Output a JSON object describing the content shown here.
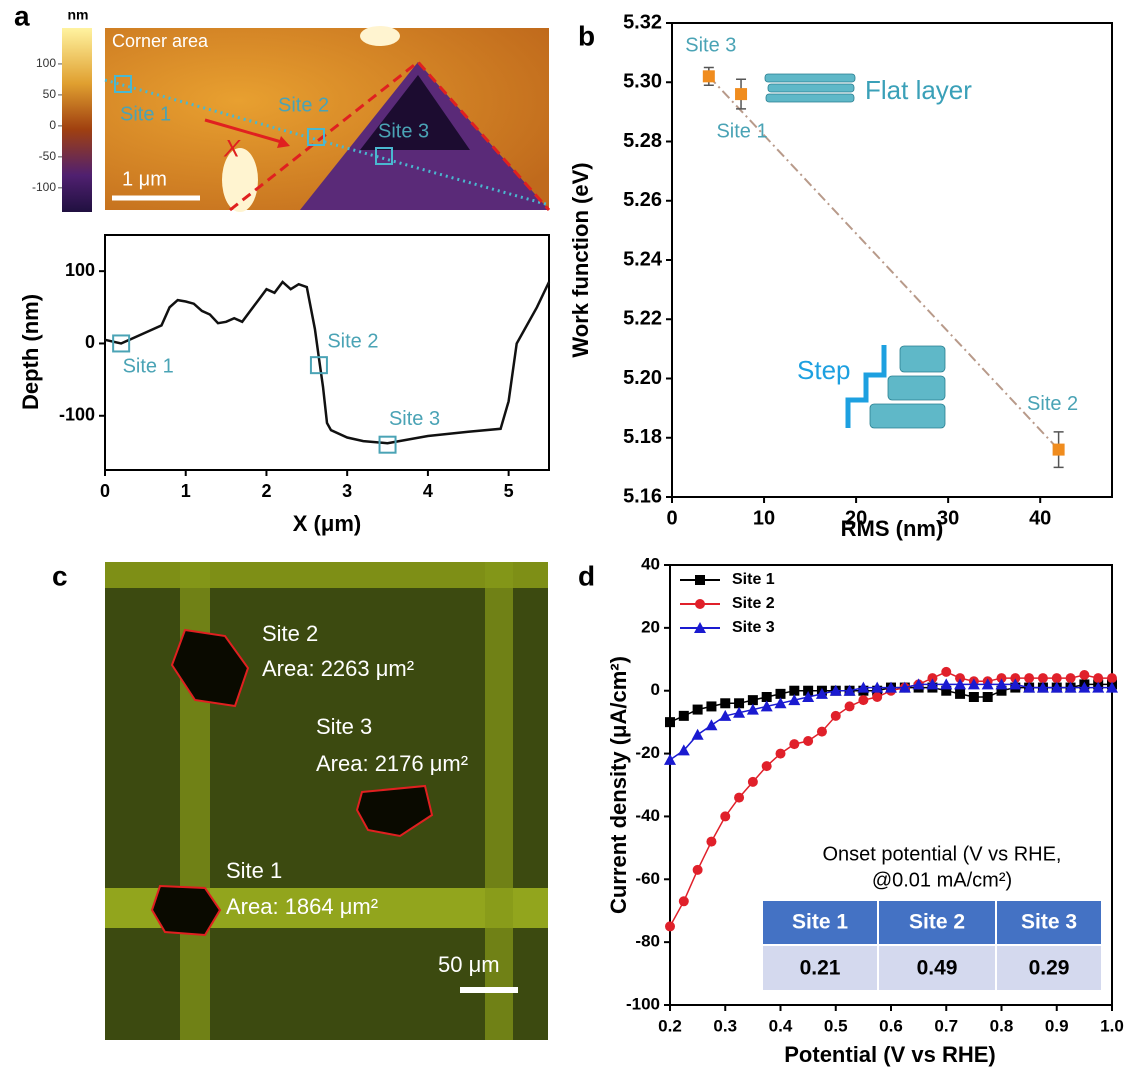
{
  "chart_data": [
    {
      "type": "line",
      "x_label": "X (μm)",
      "y_label": "Depth (nm)",
      "x": [
        0,
        0.2,
        0.5,
        0.7,
        0.8,
        0.9,
        1.0,
        1.1,
        1.2,
        1.3,
        1.4,
        1.5,
        1.6,
        1.7,
        1.8,
        1.9,
        2.0,
        2.1,
        2.2,
        2.3,
        2.4,
        2.5,
        2.6,
        2.65,
        2.7,
        2.75,
        2.8,
        3.0,
        3.2,
        3.5,
        3.8,
        4.0,
        4.5,
        4.9,
        5.0,
        5.1,
        5.2,
        5.35,
        5.5
      ],
      "values": [
        5,
        0,
        15,
        25,
        50,
        60,
        58,
        55,
        45,
        40,
        28,
        30,
        35,
        30,
        45,
        60,
        75,
        70,
        85,
        75,
        82,
        78,
        20,
        -20,
        -60,
        -110,
        -120,
        -130,
        -135,
        -138,
        -132,
        -128,
        -122,
        -118,
        -80,
        0,
        20,
        50,
        85
      ],
      "color": "#111111",
      "annotations": [
        {
          "label": "Site 1",
          "x": 0.2,
          "y": 0
        },
        {
          "label": "Site 2",
          "x": 2.65,
          "y": -30
        },
        {
          "label": "Site 3",
          "x": 3.5,
          "y": -140
        }
      ],
      "xlim": [
        0,
        5.5
      ],
      "xticks": [
        0,
        1,
        2,
        3,
        4,
        5
      ],
      "ylim": [
        -175,
        150
      ],
      "yticks": [
        -100,
        0,
        100
      ]
    },
    {
      "type": "scatter",
      "panel": "b",
      "x_label": "RMS (nm)",
      "y_label": "Work function (eV)",
      "x": [
        4,
        7.5,
        42
      ],
      "values": [
        5.302,
        5.296,
        5.176
      ],
      "errors": [
        0.003,
        0.005,
        0.006
      ],
      "point_labels": [
        "Site 3",
        "Site 1",
        "Site 2"
      ],
      "color": "#f08c1e",
      "trend_line": true,
      "trend_color": "#b89a8a",
      "annotations": [
        "Flat layer",
        "Step"
      ],
      "xlim": [
        0,
        47.8
      ],
      "xticks": [
        0,
        10,
        20,
        30,
        40
      ],
      "ylim": [
        5.16,
        5.32
      ],
      "yticks": [
        5.16,
        5.18,
        {
          "value": 5.2,
          "label": "5.20"
        },
        5.22,
        5.24,
        5.26,
        5.28,
        {
          "value": 5.3,
          "label": "5.30"
        },
        5.32
      ]
    },
    {
      "type": "line",
      "panel": "d",
      "x_label": "Potential (V vs RHE)",
      "y_label": "Current density (μA/cm²)",
      "x": [
        0.2,
        0.225,
        0.25,
        0.275,
        0.3,
        0.325,
        0.35,
        0.375,
        0.4,
        0.425,
        0.45,
        0.475,
        0.5,
        0.525,
        0.55,
        0.575,
        0.6,
        0.625,
        0.65,
        0.675,
        0.7,
        0.725,
        0.75,
        0.775,
        0.8,
        0.825,
        0.85,
        0.875,
        0.9,
        0.925,
        0.95,
        0.975,
        1.0
      ],
      "series": [
        {
          "name": "Site 1",
          "color": "#000000",
          "marker": "square",
          "values": [
            -10,
            -8,
            -6,
            -5,
            -4,
            -4,
            -3,
            -2,
            -1,
            0,
            0,
            0,
            0,
            0,
            0,
            0,
            1,
            1,
            1,
            1,
            0,
            -1,
            -2,
            -2,
            0,
            1,
            1,
            1,
            1,
            1,
            2,
            2,
            2
          ]
        },
        {
          "name": "Site 2",
          "color": "#e0202a",
          "marker": "circle",
          "values": [
            -75,
            -67,
            -57,
            -48,
            -40,
            -34,
            -29,
            -24,
            -20,
            -17,
            -16,
            -13,
            -8,
            -5,
            -3,
            -2,
            0,
            1,
            2,
            4,
            6,
            4,
            3,
            3,
            4,
            4,
            4,
            4,
            4,
            4,
            5,
            4,
            4
          ]
        },
        {
          "name": "Site 3",
          "color": "#1a1ad0",
          "marker": "triangle",
          "values": [
            -22,
            -19,
            -14,
            -11,
            -8,
            -7,
            -6,
            -5,
            -4,
            -3,
            -2,
            -1,
            0,
            0,
            1,
            1,
            1,
            1,
            2,
            2,
            2,
            2,
            2,
            2,
            2,
            2,
            1,
            1,
            1,
            1,
            1,
            1,
            1
          ]
        }
      ],
      "legend": "upper left",
      "inset_table": {
        "title": [
          "Onset potential (V vs RHE,",
          "@0.01 mA/cm²)"
        ],
        "header": [
          "Site 1",
          "Site 2",
          "Site 3"
        ],
        "values": [
          0.21,
          0.49,
          0.29
        ]
      },
      "xlim": [
        0.2,
        1.0
      ],
      "xticks": [
        0.2,
        0.3,
        0.4,
        0.5,
        0.6,
        0.7,
        0.8,
        0.9,
        {
          "value": 1,
          "label": "1.0"
        }
      ],
      "ylim": [
        -100,
        40
      ],
      "yticks": [
        -100,
        -80,
        -60,
        -40,
        -20,
        0,
        20,
        40
      ]
    }
  ],
  "image_a": {
    "panel": "a",
    "title": "Corner area",
    "scale": "1 μm",
    "cross": "X",
    "sites": [
      "Site 1",
      "Site 2",
      "Site 3"
    ],
    "colorbar": {
      "label": "nm",
      "lim": [
        -139,
        158
      ],
      "ticks": [
        100,
        50,
        0,
        -50,
        -100
      ]
    }
  },
  "image_c": {
    "panel": "c",
    "scale": "50 μm",
    "sites": [
      {
        "name": "Site 2",
        "area": "Area: 2263 μm²"
      },
      {
        "name": "Site 3",
        "area": "Area: 2176 μm²"
      },
      {
        "name": "Site 1",
        "area": "Area: 1864 μm²"
      }
    ]
  }
}
